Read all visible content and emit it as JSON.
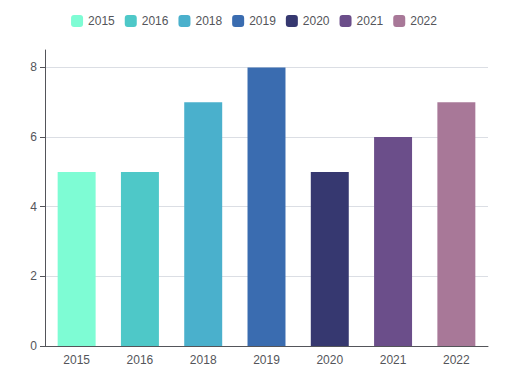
{
  "chart_data": {
    "type": "bar",
    "categories": [
      "2015",
      "2016",
      "2018",
      "2019",
      "2020",
      "2021",
      "2022"
    ],
    "values": [
      5,
      5,
      7,
      8,
      5,
      6,
      7
    ],
    "colors": [
      "#7EFCD4",
      "#4EC8C8",
      "#4AB0CC",
      "#3A6CB0",
      "#363870",
      "#6B4E8A",
      "#A87898"
    ],
    "ylim": [
      0,
      8.5
    ],
    "yticks": [
      0,
      2,
      4,
      6,
      8
    ],
    "grid": true,
    "legend": "top"
  }
}
